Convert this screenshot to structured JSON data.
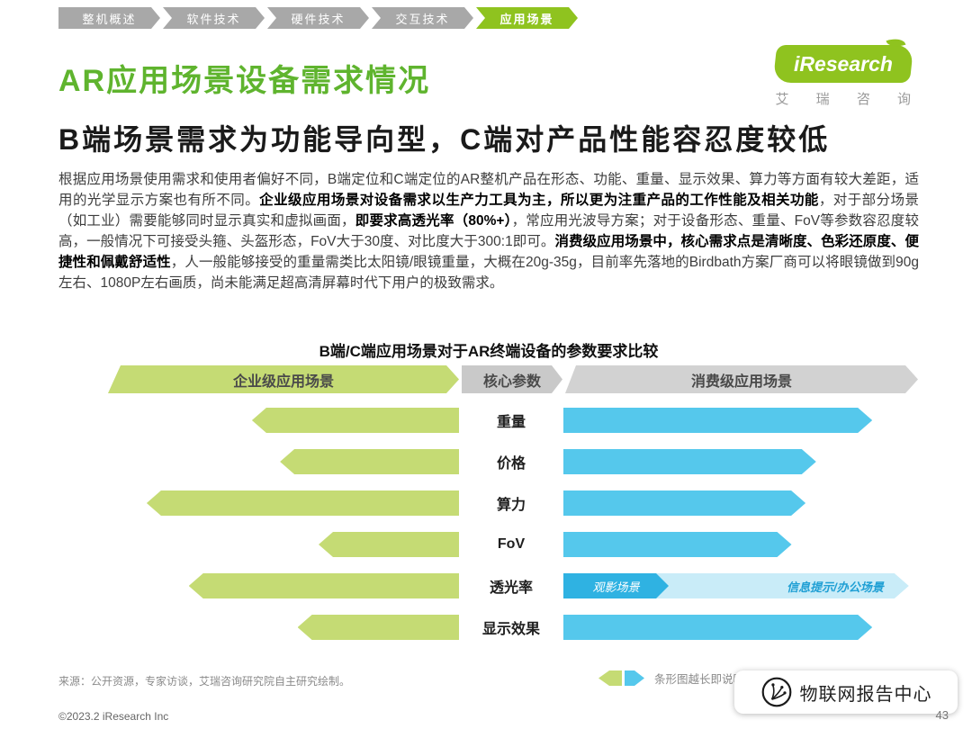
{
  "nav": {
    "tabs": [
      {
        "id": "overview",
        "label": "整机概述",
        "active": false
      },
      {
        "id": "software",
        "label": "软件技术",
        "active": false
      },
      {
        "id": "hardware",
        "label": "硬件技术",
        "active": false
      },
      {
        "id": "interaction",
        "label": "交互技术",
        "active": false
      },
      {
        "id": "application",
        "label": "应用场景",
        "active": true
      }
    ]
  },
  "header": {
    "title": "AR应用场景设备需求情况",
    "logo_text": "iResearch",
    "logo_subtext": "艾 瑞 咨 询"
  },
  "subtitle": "B端场景需求为功能导向型，C端对产品性能容忍度较低",
  "body": {
    "segments": [
      {
        "text": "根据应用场景使用需求和使用者偏好不同，B端定位和C端定位的AR整机产品在形态、功能、重量、显示效果、算力等方面有较大差距，适用的光学显示方案也有所不同。",
        "bold": false
      },
      {
        "text": "企业级应用场景对设备需求以生产力工具为主，所以更为注重产品的工作性能及相关功能",
        "bold": true
      },
      {
        "text": "，对于部分场景（如工业）需要能够同时显示真实和虚拟画面，",
        "bold": false
      },
      {
        "text": "即要求高透光率（80%+）",
        "bold": true
      },
      {
        "text": "，常应用光波导方案；对于设备形态、重量、FoV等参数容忍度较高，一般情况下可接受头箍、头盔形态，FoV大于30度、对比度大于300:1即可。",
        "bold": false
      },
      {
        "text": "消费级应用场景中，核心需求点是清晰度、色彩还原度、便捷性和佩戴舒适性",
        "bold": true
      },
      {
        "text": "，人一般能够接受的重量需类比太阳镜/眼镜重量，大概在20g-35g，目前率先落地的Birdbath方案厂商可以将眼镜做到90g左右、1080P左右画质，尚未能满足超高清屏幕时代下用户的极致需求。",
        "bold": false
      }
    ]
  },
  "chart_data": {
    "type": "bar",
    "title": "B端/C端应用场景对于AR终端设备的参数要求比较",
    "headers": {
      "left": "企业级应用场景",
      "center": "核心参数",
      "right": "消费级应用场景"
    },
    "categories": [
      "重量",
      "价格",
      "算力",
      "FoV",
      "透光率",
      "显示效果"
    ],
    "value_unit": "relative bar length, fraction of column width (0-1), longer = higher requirement",
    "rows": [
      {
        "param": "重量",
        "left": 0.59,
        "right": 0.88
      },
      {
        "param": "价格",
        "left": 0.51,
        "right": 0.72
      },
      {
        "param": "算力",
        "left": 0.89,
        "right": 0.69
      },
      {
        "param": "FoV",
        "left": 0.4,
        "right": 0.65
      },
      {
        "param": "透光率",
        "left": 0.77,
        "right_segments": [
          {
            "label": "观影场景",
            "frac": 0.3
          },
          {
            "label": "信息提示/办公场景",
            "frac": 0.72
          }
        ]
      },
      {
        "param": "显示效果",
        "left": 0.46,
        "right": 0.88
      }
    ],
    "note": "条形图越长即说明对此参数的性能要求程度越高",
    "legend_position": "bottom-right"
  },
  "footer": {
    "source": "来源：公开资源，专家访谈，艾瑞咨询研究院自主研究绘制。",
    "copyright": "©2023.2 iResearch Inc",
    "page_number": "43"
  },
  "watermark": {
    "text": "物联网报告中心"
  },
  "colors": {
    "brand_green": "#8fc31f",
    "title_green": "#5fb42e",
    "bar_green": "#c5db74",
    "bar_blue": "#55c8ec",
    "bar_blue_dark": "#2fb2e2",
    "bar_blue_light": "#c9ecf8",
    "tab_gray": "#a8a8a8"
  }
}
